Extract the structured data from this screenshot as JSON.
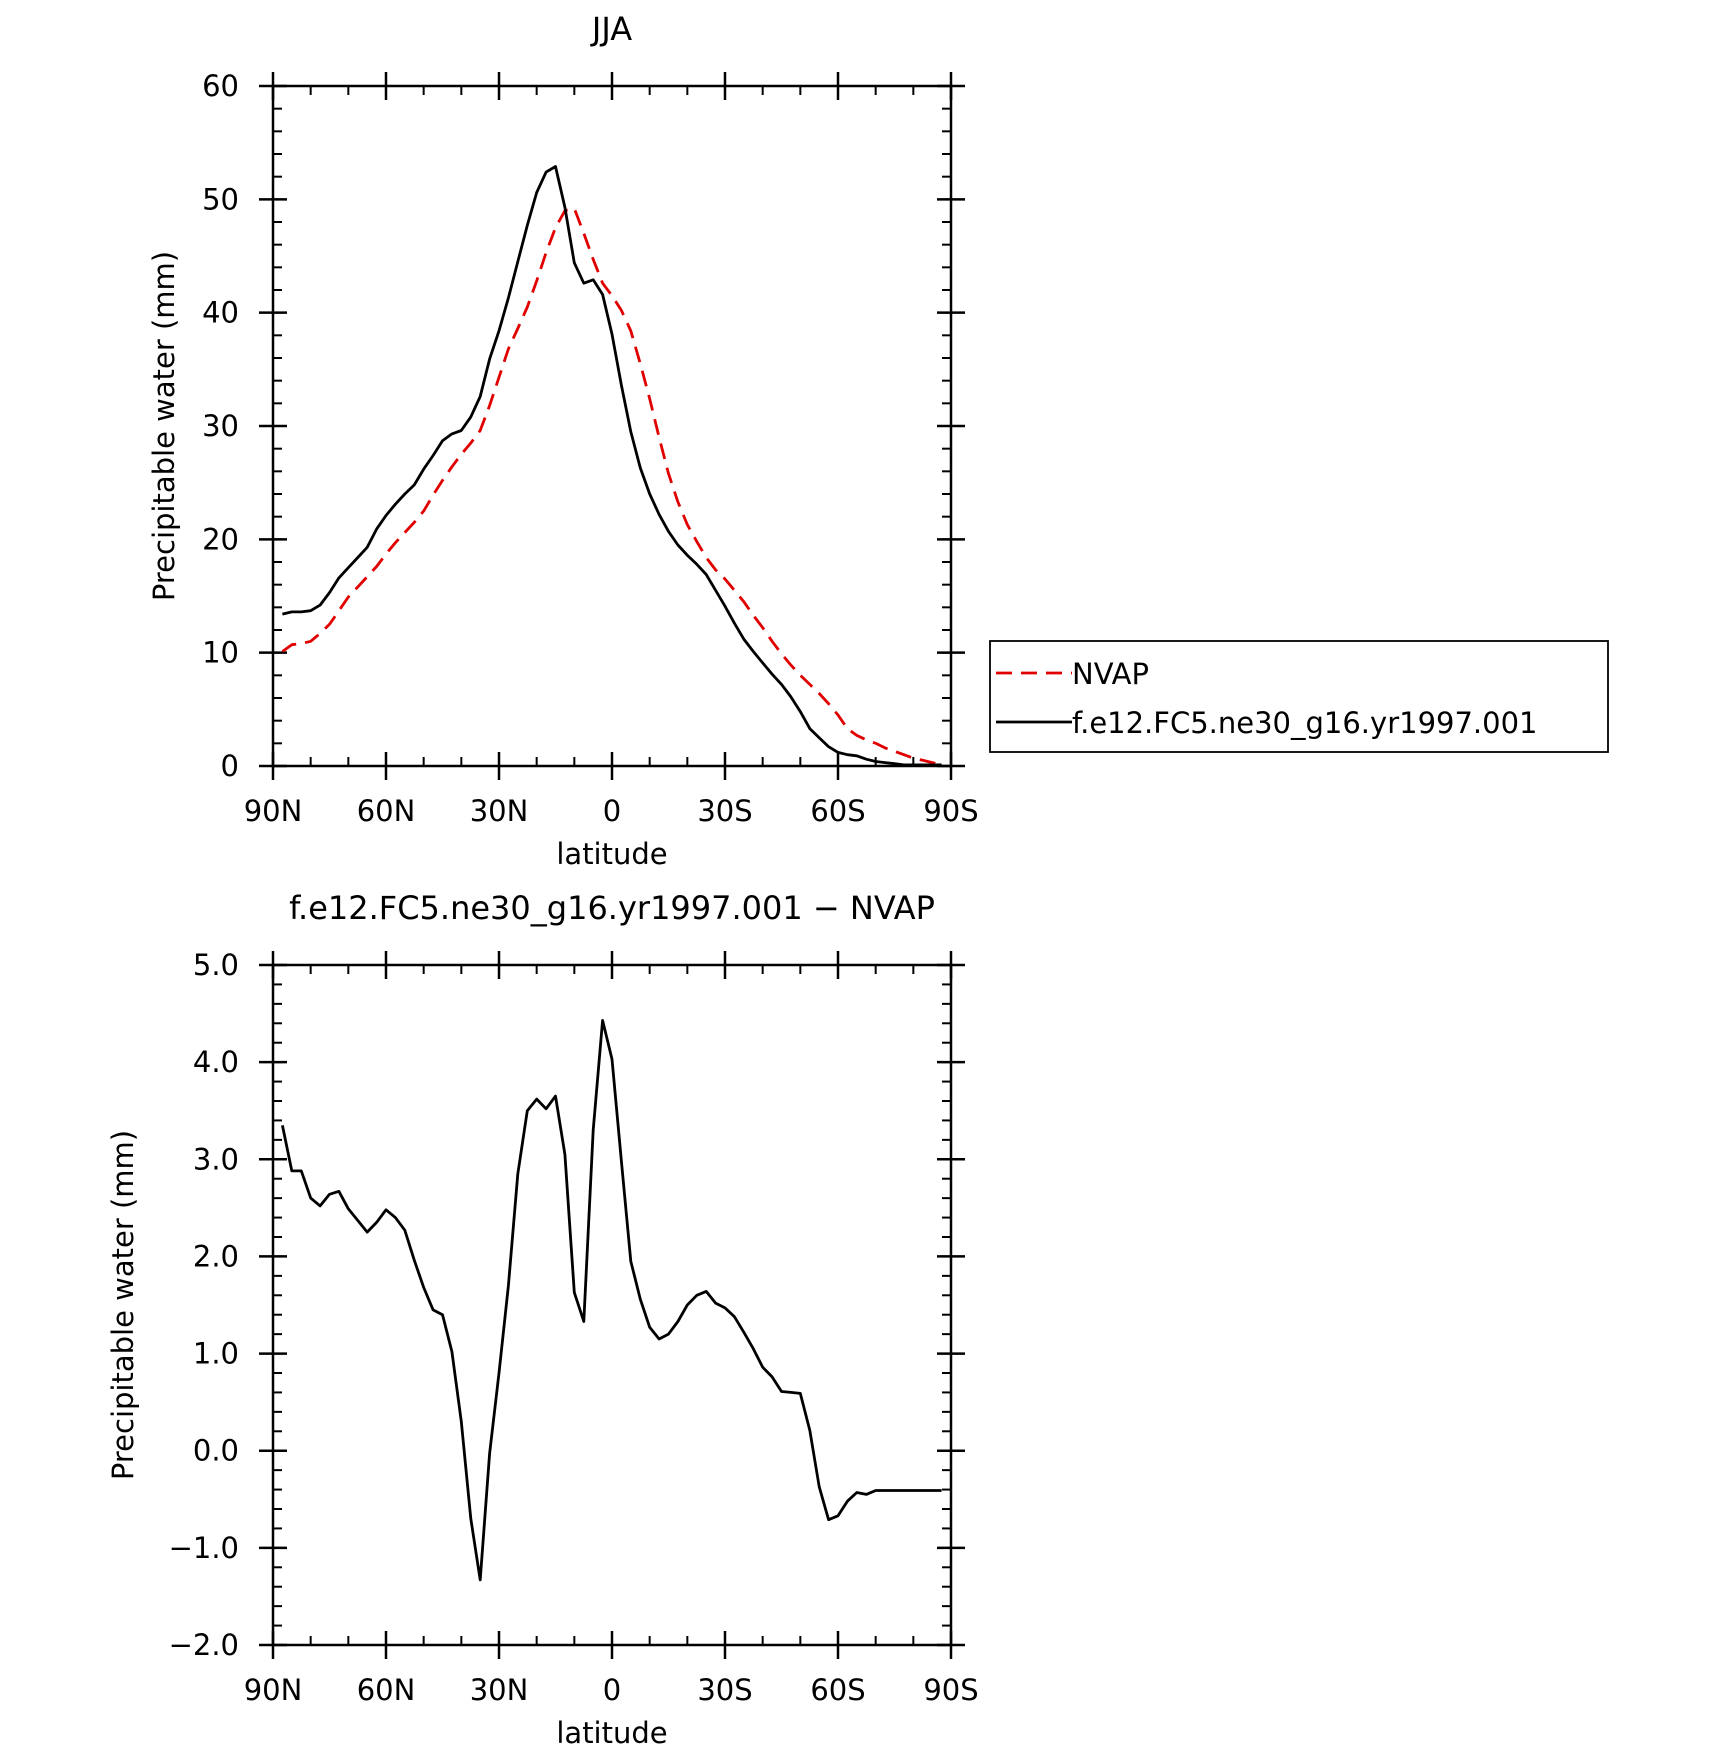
{
  "chart_data": [
    {
      "type": "line",
      "title": "JJA",
      "xlabel": "latitude",
      "ylabel": "Precipitable water (mm)",
      "xlim": [
        90,
        -90
      ],
      "ylim": [
        0,
        60
      ],
      "x_ticks": [
        90,
        60,
        30,
        0,
        -30,
        -60,
        -90
      ],
      "x_tick_labels": [
        "90N",
        "60N",
        "30N",
        "0",
        "30S",
        "60S",
        "90S"
      ],
      "y_ticks": [
        0,
        10,
        20,
        30,
        40,
        50,
        60
      ],
      "y_tick_labels": [
        "0",
        "10",
        "20",
        "30",
        "40",
        "50",
        "60"
      ],
      "grid": false,
      "legend": {
        "placement": "right"
      },
      "x": [
        87.5,
        85,
        82.5,
        80,
        77.5,
        75,
        72.5,
        70,
        67.5,
        65,
        62.5,
        60,
        57.5,
        55,
        52.5,
        50,
        47.5,
        45,
        42.5,
        40,
        37.5,
        35,
        32.5,
        30,
        27.5,
        25,
        22.5,
        20,
        17.5,
        15,
        12.5,
        10,
        7.5,
        5,
        2.5,
        0,
        -2.5,
        -5,
        -7.5,
        -10,
        -12.5,
        -15,
        -17.5,
        -20,
        -22.5,
        -25,
        -27.5,
        -30,
        -32.5,
        -35,
        -37.5,
        -40,
        -42.5,
        -45,
        -47.5,
        -50,
        -52.5,
        -55,
        -57.5,
        -60,
        -62.5,
        -65,
        -67.5,
        -70,
        -72.5,
        -75,
        -77.5,
        -80,
        -82.5,
        -85,
        -87.5
      ],
      "series": [
        {
          "name": "NVAP",
          "color": "#e00000",
          "dash": true,
          "values": [
            10.1,
            10.7,
            10.8,
            11.0,
            11.7,
            12.5,
            13.7,
            14.9,
            15.8,
            16.7,
            17.6,
            18.7,
            19.7,
            20.6,
            21.5,
            22.5,
            23.9,
            25.2,
            26.4,
            27.5,
            28.5,
            29.6,
            31.8,
            34.3,
            36.8,
            38.6,
            40.5,
            42.8,
            45.3,
            47.5,
            49.0,
            49.2,
            47.0,
            44.7,
            42.6,
            41.5,
            40.2,
            38.4,
            35.5,
            32.4,
            29.0,
            25.8,
            23.3,
            21.3,
            19.8,
            18.4,
            17.3,
            16.5,
            15.5,
            14.5,
            13.3,
            12.2,
            11.0,
            9.9,
            8.9,
            8.0,
            7.2,
            6.4,
            5.5,
            4.5,
            3.3,
            2.7,
            2.3,
            2.0,
            1.6,
            1.3,
            1.0,
            0.7,
            0.5,
            0.3,
            0.1
          ]
        },
        {
          "name": "f.e12.FC5.ne30_g16.yr1997.001",
          "color": "#000000",
          "dash": false,
          "values": [
            13.4,
            13.6,
            13.6,
            13.7,
            14.2,
            15.3,
            16.6,
            17.5,
            18.4,
            19.3,
            20.9,
            22.1,
            23.1,
            24.0,
            24.8,
            26.2,
            27.4,
            28.7,
            29.3,
            29.6,
            30.8,
            32.6,
            35.9,
            38.4,
            41.3,
            44.5,
            47.7,
            50.6,
            52.4,
            52.9,
            49.3,
            44.4,
            42.6,
            42.9,
            41.6,
            38.1,
            33.6,
            29.5,
            26.3,
            24.0,
            22.2,
            20.7,
            19.5,
            18.6,
            17.8,
            16.9,
            15.5,
            14.1,
            12.6,
            11.2,
            10.1,
            9.1,
            8.1,
            7.2,
            6.1,
            4.8,
            3.3,
            2.5,
            1.7,
            1.2,
            1.0,
            0.9,
            0.6,
            0.4,
            0.3,
            0.2,
            0.1,
            0.1,
            0.1,
            0.1,
            0.1
          ]
        }
      ]
    },
    {
      "type": "line",
      "title": "f.e12.FC5.ne30_g16.yr1997.001 − NVAP",
      "xlabel": "latitude",
      "ylabel": "Precipitable water (mm)",
      "xlim": [
        90,
        -90
      ],
      "ylim": [
        -2.0,
        5.0
      ],
      "x_ticks": [
        90,
        60,
        30,
        0,
        -30,
        -60,
        -90
      ],
      "x_tick_labels": [
        "90N",
        "60N",
        "30N",
        "0",
        "30S",
        "60S",
        "90S"
      ],
      "y_ticks": [
        -2.0,
        -1.0,
        0.0,
        1.0,
        2.0,
        3.0,
        4.0,
        5.0
      ],
      "y_tick_labels": [
        "−2.0",
        "−1.0",
        "0.0",
        "1.0",
        "2.0",
        "3.0",
        "4.0",
        "5.0"
      ],
      "grid": false,
      "x": [
        87.5,
        85,
        82.5,
        80,
        77.5,
        75,
        72.5,
        70,
        67.5,
        65,
        62.5,
        60,
        57.5,
        55,
        52.5,
        50,
        47.5,
        45,
        42.5,
        40,
        37.5,
        35,
        32.5,
        30,
        27.5,
        25,
        22.5,
        20,
        17.5,
        15,
        12.5,
        10,
        7.5,
        5,
        2.5,
        0,
        -2.5,
        -5,
        -7.5,
        -10,
        -12.5,
        -15,
        -17.5,
        -20,
        -22.5,
        -25,
        -27.5,
        -30,
        -32.5,
        -35,
        -37.5,
        -40,
        -42.5,
        -45,
        -47.5,
        -50,
        -52.5,
        -55,
        -57.5,
        -60,
        -62.5,
        -65,
        -67.5,
        -70,
        -72.5,
        -75,
        -77.5,
        -80,
        -82.5,
        -85,
        -87.5
      ],
      "series": [
        {
          "color": "#000000",
          "dash": false,
          "values": [
            3.35,
            2.88,
            2.88,
            2.6,
            2.52,
            2.64,
            2.67,
            2.49,
            2.37,
            2.25,
            2.35,
            2.48,
            2.4,
            2.27,
            1.96,
            1.68,
            1.45,
            1.4,
            1.02,
            0.3,
            -0.7,
            -1.33,
            -0.03,
            0.8,
            1.7,
            2.85,
            3.5,
            3.62,
            3.52,
            3.65,
            3.05,
            1.63,
            1.33,
            3.3,
            4.43,
            4.03,
            2.98,
            1.95,
            1.56,
            1.27,
            1.15,
            1.2,
            1.33,
            1.5,
            1.6,
            1.64,
            1.52,
            1.47,
            1.38,
            1.22,
            1.05,
            0.86,
            0.76,
            0.61,
            0.6,
            0.59,
            0.21,
            -0.37,
            -0.71,
            -0.67,
            -0.52,
            -0.43,
            -0.45,
            -0.41,
            -0.41,
            -0.41,
            -0.41,
            -0.41,
            -0.41,
            -0.41,
            -0.41
          ]
        }
      ]
    }
  ]
}
